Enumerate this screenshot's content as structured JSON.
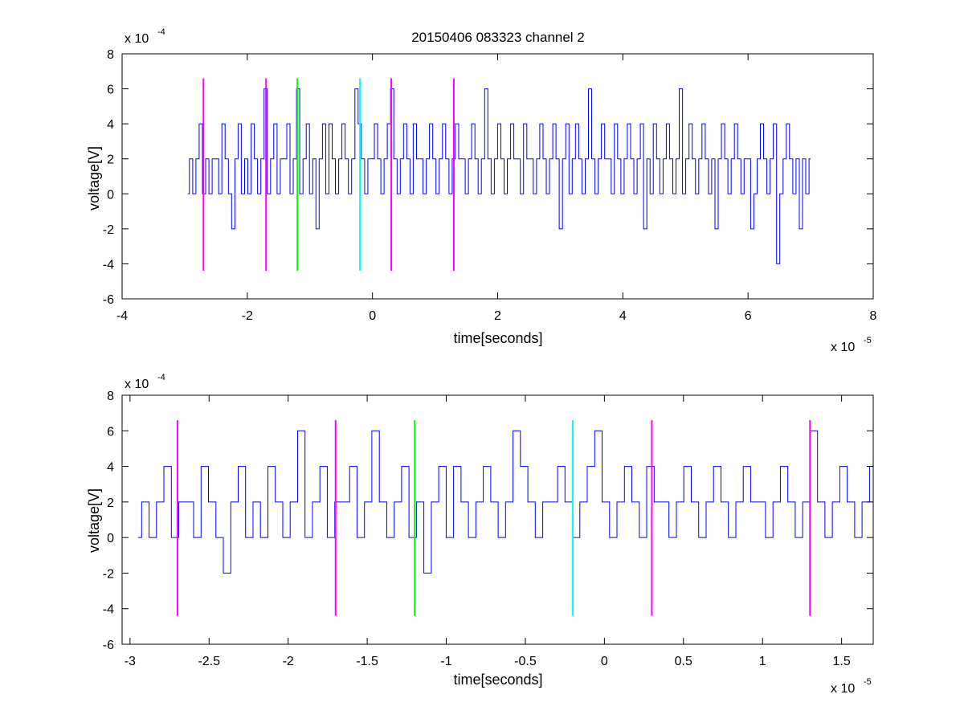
{
  "colors": {
    "signal": "#0000ff",
    "marker_magenta": "#ff00ff",
    "marker_green": "#00ff00",
    "marker_cyan": "#00ffff",
    "axes": "#000000",
    "background": "#ffffff"
  },
  "chart_data": [
    {
      "type": "line",
      "title": "20150406 083323 channel 2",
      "xlabel": "time[seconds]",
      "ylabel": "voltage[V]",
      "x_exponent_label": "x 10",
      "x_exponent": "-5",
      "y_exponent_label": "x 10",
      "y_exponent": "-4",
      "xlim": [
        -4,
        8
      ],
      "ylim": [
        -6,
        8
      ],
      "x_ticks": [
        -4,
        -2,
        0,
        2,
        4,
        6,
        8
      ],
      "x_tick_labels": [
        "-4",
        "-2",
        "0",
        "2",
        "4",
        "6",
        "8"
      ],
      "y_ticks": [
        -6,
        -4,
        -2,
        0,
        2,
        4,
        6,
        8
      ],
      "y_tick_labels": [
        "-6",
        "-4",
        "-2",
        "0",
        "2",
        "4",
        "6",
        "8"
      ],
      "grid": false,
      "series": [
        {
          "x_start": -2.95,
          "x_end": 7.0,
          "values": [
            0,
            2,
            0,
            2,
            4,
            0,
            2,
            0,
            2,
            2,
            0,
            4,
            2,
            0,
            -2,
            2,
            4,
            0,
            2,
            0,
            4,
            2,
            0,
            2,
            6,
            0,
            2,
            4,
            0,
            2,
            2,
            4,
            0,
            2,
            6,
            0,
            2,
            4,
            0,
            2,
            -2,
            2,
            4,
            0,
            4,
            2,
            0,
            2,
            4,
            2,
            0,
            2,
            6,
            4,
            2,
            0,
            2,
            2,
            4,
            2,
            0,
            2,
            4,
            6,
            2,
            0,
            2,
            4,
            2,
            0,
            4,
            2,
            2,
            0,
            2,
            4,
            2,
            0,
            2,
            4,
            2,
            0,
            2,
            4,
            2,
            2,
            0,
            2,
            4,
            2,
            0,
            2,
            6,
            2,
            0,
            2,
            4,
            2,
            0,
            2,
            4,
            2,
            2,
            0,
            4,
            2,
            2,
            0,
            2,
            4,
            2,
            0,
            2,
            4,
            2,
            -2,
            2,
            4,
            0,
            2,
            4,
            2,
            0,
            2,
            6,
            2,
            0,
            2,
            4,
            2,
            2,
            0,
            4,
            2,
            0,
            2,
            4,
            2,
            0,
            2,
            4,
            -2,
            2,
            0,
            4,
            2,
            0,
            2,
            4,
            2,
            0,
            2,
            6,
            0,
            2,
            4,
            2,
            0,
            2,
            4,
            2,
            0,
            2,
            -2,
            2,
            4,
            2,
            0,
            2,
            4,
            2,
            0,
            2,
            2,
            -2,
            0,
            2,
            4,
            2,
            0,
            2,
            4,
            -4,
            0,
            2,
            4,
            2,
            0,
            2,
            -2,
            2,
            0,
            2
          ]
        }
      ],
      "markers": [
        {
          "x": -2.7,
          "color": "magenta",
          "y_min": -4.4,
          "y_max": 6.6
        },
        {
          "x": -1.7,
          "color": "magenta",
          "y_min": -4.4,
          "y_max": 6.6
        },
        {
          "x": -1.2,
          "color": "green",
          "y_min": -4.4,
          "y_max": 6.6
        },
        {
          "x": -0.2,
          "color": "cyan",
          "y_min": -4.4,
          "y_max": 6.6
        },
        {
          "x": 0.3,
          "color": "magenta",
          "y_min": -4.4,
          "y_max": 6.6
        },
        {
          "x": 1.3,
          "color": "magenta",
          "y_min": -4.4,
          "y_max": 6.6
        }
      ]
    },
    {
      "type": "line",
      "title": "",
      "xlabel": "time[seconds]",
      "ylabel": "voltage[V]",
      "x_exponent_label": "x 10",
      "x_exponent": "-5",
      "y_exponent_label": "x 10",
      "y_exponent": "-4",
      "xlim": [
        -3.05,
        1.7
      ],
      "ylim": [
        -6,
        8
      ],
      "x_ticks": [
        -3,
        -2.5,
        -2,
        -1.5,
        -1,
        -0.5,
        0,
        0.5,
        1,
        1.5
      ],
      "x_tick_labels": [
        "-3",
        "-2.5",
        "-2",
        "-1.5",
        "-1",
        "-0.5",
        "0",
        "0.5",
        "1",
        "1.5"
      ],
      "y_ticks": [
        -6,
        -4,
        -2,
        0,
        2,
        4,
        6,
        8
      ],
      "y_tick_labels": [
        "-6",
        "-4",
        "-2",
        "0",
        "2",
        "4",
        "6",
        "8"
      ],
      "grid": false,
      "series": [
        {
          "x_start": -2.95,
          "x_end": 1.7,
          "values": [
            0,
            2,
            0,
            2,
            4,
            0,
            2,
            2,
            0,
            4,
            2,
            0,
            -2,
            2,
            4,
            0,
            2,
            0,
            4,
            2,
            0,
            2,
            6,
            0,
            2,
            4,
            0,
            2,
            2,
            4,
            0,
            2,
            6,
            2,
            0,
            2,
            4,
            0,
            2,
            -2,
            2,
            4,
            0,
            4,
            2,
            0,
            2,
            4,
            2,
            0,
            2,
            6,
            4,
            2,
            0,
            2,
            2,
            4,
            2,
            0,
            2,
            4,
            6,
            2,
            0,
            2,
            4,
            2,
            0,
            4,
            2,
            2,
            0,
            2,
            4,
            2,
            0,
            2,
            4,
            2,
            0,
            2,
            4,
            2,
            2,
            0,
            2,
            4,
            2,
            0,
            2,
            6,
            2,
            0,
            2,
            4,
            2,
            0,
            2,
            4
          ]
        }
      ],
      "markers": [
        {
          "x": -2.7,
          "color": "magenta",
          "y_min": -4.4,
          "y_max": 6.6
        },
        {
          "x": -1.7,
          "color": "magenta",
          "y_min": -4.4,
          "y_max": 6.6
        },
        {
          "x": -1.2,
          "color": "green",
          "y_min": -4.4,
          "y_max": 6.6
        },
        {
          "x": -0.2,
          "color": "cyan",
          "y_min": -4.4,
          "y_max": 6.6
        },
        {
          "x": 0.3,
          "color": "magenta",
          "y_min": -4.4,
          "y_max": 6.6
        },
        {
          "x": 1.3,
          "color": "magenta",
          "y_min": -4.4,
          "y_max": 6.6
        }
      ]
    }
  ]
}
